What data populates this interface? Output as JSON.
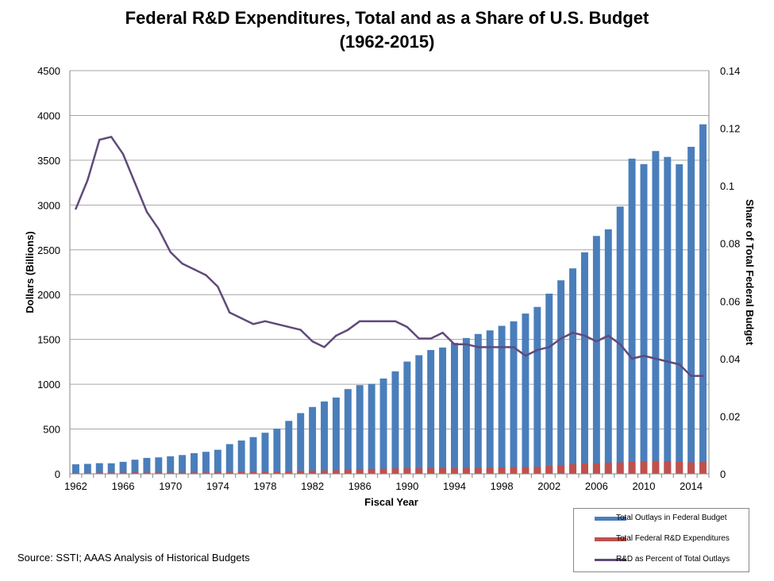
{
  "title_line1": "Federal R&D Expenditures, Total and as a Share of U.S. Budget",
  "title_line2": "(1962-2015)",
  "source": "Source: SSTI; AAAS Analysis of Historical Budgets",
  "chart_data": {
    "type": "bar",
    "title": "Federal R&D Expenditures, Total and as a Share of U.S. Budget (1962-2015)",
    "xlabel": "Fiscal Year",
    "ylabel": "Dollars (Billions)",
    "y2label": "Share of Total Federal Budget",
    "ylim": [
      0,
      4500
    ],
    "y2lim": [
      0,
      0.14
    ],
    "yticks": [
      "0",
      "500",
      "1000",
      "1500",
      "2000",
      "2500",
      "3000",
      "3500",
      "4000",
      "4500"
    ],
    "y2ticks": [
      "0",
      "0.02",
      "0.04",
      "0.06",
      "0.08",
      "0.1",
      "0.12",
      "0.14"
    ],
    "xtick_labels": [
      "1962",
      "1966",
      "1970",
      "1974",
      "1978",
      "1982",
      "1986",
      "1990",
      "1994",
      "1998",
      "2002",
      "2006",
      "2010",
      "2014"
    ],
    "grid": true,
    "legend_position": "bottom-right",
    "categories": [
      1962,
      1963,
      1964,
      1965,
      1966,
      1967,
      1968,
      1969,
      1970,
      1971,
      1972,
      1973,
      1974,
      1975,
      1976,
      1977,
      1978,
      1979,
      1980,
      1981,
      1982,
      1983,
      1984,
      1985,
      1986,
      1987,
      1988,
      1989,
      1990,
      1991,
      1992,
      1993,
      1994,
      1995,
      1996,
      1997,
      1998,
      1999,
      2000,
      2001,
      2002,
      2003,
      2004,
      2005,
      2006,
      2007,
      2008,
      2009,
      2010,
      2011,
      2012,
      2013,
      2014,
      2015
    ],
    "colors": {
      "outlays": "#4a7ebb",
      "rd": "#c0504d",
      "share": "#604a7b",
      "grid": "#a6a6a6",
      "axis": "#868686"
    },
    "series": [
      {
        "name": "Total Outlays in Federal Budget",
        "kind": "bar",
        "axis": "left",
        "values": [
          107,
          111,
          119,
          118,
          134,
          158,
          178,
          184,
          196,
          210,
          231,
          246,
          269,
          332,
          372,
          410,
          459,
          504,
          591,
          678,
          746,
          808,
          852,
          946,
          990,
          1004,
          1064,
          1144,
          1253,
          1324,
          1382,
          1410,
          1462,
          1516,
          1561,
          1601,
          1652,
          1702,
          1789,
          1863,
          2011,
          2160,
          2293,
          2472,
          2655,
          2729,
          2983,
          3518,
          3457,
          3603,
          3537,
          3455,
          3650,
          3901
        ]
      },
      {
        "name": "Total Federal R&D Expenditures",
        "kind": "bar",
        "axis": "left",
        "values": [
          10,
          11,
          14,
          14,
          15,
          16,
          16,
          16,
          15,
          15,
          16,
          17,
          18,
          19,
          20,
          22,
          24,
          26,
          30,
          33,
          35,
          37,
          40,
          46,
          52,
          55,
          57,
          61,
          64,
          62,
          65,
          67,
          66,
          67,
          67,
          70,
          71,
          75,
          75,
          80,
          88,
          99,
          109,
          117,
          119,
          126,
          128,
          137,
          141,
          145,
          140,
          134,
          129,
          131
        ]
      },
      {
        "name": "R&D as Percent of Total Outlays",
        "kind": "line",
        "axis": "right",
        "values": [
          0.092,
          0.102,
          0.116,
          0.117,
          0.111,
          0.101,
          0.091,
          0.085,
          0.077,
          0.073,
          0.071,
          0.069,
          0.065,
          0.056,
          0.054,
          0.052,
          0.053,
          0.052,
          0.051,
          0.05,
          0.046,
          0.044,
          0.048,
          0.05,
          0.053,
          0.053,
          0.053,
          0.053,
          0.051,
          0.047,
          0.047,
          0.049,
          0.045,
          0.045,
          0.044,
          0.044,
          0.044,
          0.044,
          0.041,
          0.043,
          0.044,
          0.047,
          0.049,
          0.048,
          0.046,
          0.048,
          0.045,
          0.04,
          0.041,
          0.04,
          0.039,
          0.038,
          0.034,
          0.034
        ]
      }
    ]
  }
}
